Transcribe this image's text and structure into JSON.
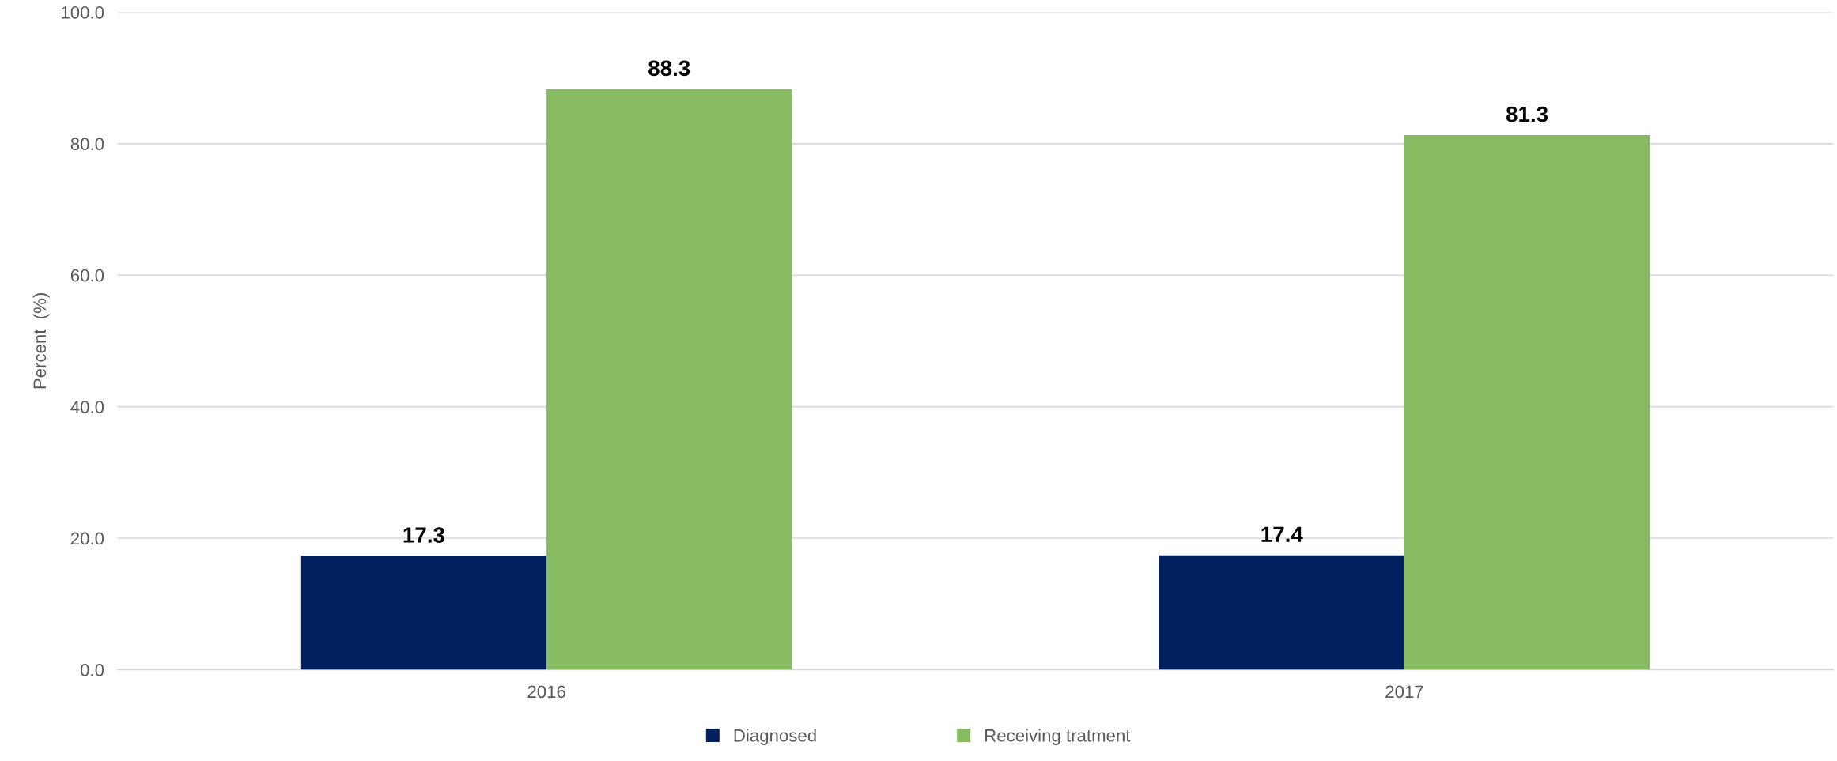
{
  "chart_data": {
    "type": "bar",
    "ylabel": "Percent  (%)",
    "categories": [
      "2016",
      "2017"
    ],
    "series": [
      {
        "name": "Diagnosed",
        "color": "#002060",
        "values": [
          17.3,
          17.4
        ]
      },
      {
        "name": "Receiving tratment",
        "color": "#87bb62",
        "values": [
          88.3,
          81.3
        ]
      }
    ],
    "ylim": [
      0,
      100
    ],
    "yticks": [
      {
        "value": 0,
        "label": "0.0"
      },
      {
        "value": 20,
        "label": "20.0"
      },
      {
        "value": 40,
        "label": "40.0"
      },
      {
        "value": 60,
        "label": "60.0"
      },
      {
        "value": 80,
        "label": "80.0"
      },
      {
        "value": 100,
        "label": "100.0"
      }
    ],
    "grid": "y",
    "legend": "bottom",
    "data_labels": true
  }
}
